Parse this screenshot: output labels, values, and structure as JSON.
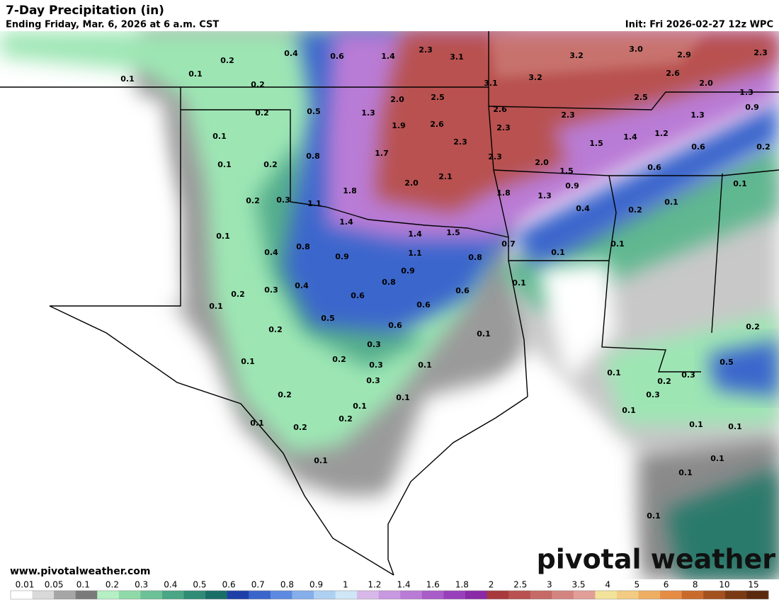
{
  "header": {
    "title": "7-Day Precipitation (in)",
    "subtitle": "Ending Friday, Mar. 6, 2026 at 6 a.m. CST",
    "init": "Init: Fri 2026-02-27 12z WPC"
  },
  "footer": {
    "website": "www.pivotalweather.com",
    "brand": "pivotal weather"
  },
  "map_labels": [
    "0.2",
    "0.4",
    "0.6",
    "1.4",
    "2.3",
    "3.1",
    "3.2",
    "3.0",
    "2.9",
    "2.3",
    "0.1",
    "0.1",
    "0.2",
    "3.1",
    "3.2",
    "2.6",
    "2.0",
    "1.3",
    "0.2",
    "0.5",
    "1.3",
    "2.0",
    "2.5",
    "2.6",
    "2.5",
    "2.3",
    "1.3",
    "0.9",
    "0.1",
    "1.9",
    "2.6",
    "2.3",
    "1.4",
    "1.2",
    "1.5",
    "0.6",
    "0.2",
    "0.1",
    "0.2",
    "0.8",
    "1.7",
    "2.3",
    "2.3",
    "2.0",
    "1.5",
    "0.6",
    "0.2",
    "0.3",
    "1.1",
    "1.8",
    "2.0",
    "2.1",
    "1.8",
    "1.3",
    "0.9",
    "0.4",
    "0.2",
    "0.1",
    "0.1",
    "0.1",
    "1.4",
    "1.4",
    "1.5",
    "0.7",
    "0.8",
    "0.4",
    "0.9",
    "1.1",
    "0.8",
    "0.1",
    "0.1",
    "0.9",
    "0.8",
    "0.2",
    "0.3",
    "0.4",
    "0.6",
    "0.6",
    "0.1",
    "0.1",
    "0.6",
    "0.5",
    "0.2",
    "0.6",
    "0.1",
    "0.2",
    "0.3",
    "0.2",
    "0.1",
    "0.3",
    "0.1",
    "0.1",
    "0.2",
    "0.3",
    "0.5",
    "0.3",
    "0.3",
    "0.2",
    "0.1",
    "0.1",
    "0.1",
    "0.2",
    "0.1",
    "0.2",
    "0.1",
    "0.1",
    "0.1",
    "0.1",
    "0.1",
    "0.1"
  ],
  "legend": {
    "labels": [
      "0.01",
      "0.05",
      "0.1",
      "0.2",
      "0.3",
      "0.4",
      "0.5",
      "0.6",
      "0.7",
      "0.8",
      "0.9",
      "1",
      "1.2",
      "1.4",
      "1.6",
      "1.8",
      "2",
      "2.5",
      "3",
      "3.5",
      "4",
      "5",
      "6",
      "8",
      "10",
      "15"
    ],
    "colors": [
      "#ffffff",
      "#d9d9d9",
      "#a6a6a6",
      "#7a7a7a",
      "#b5f0c4",
      "#8fd9a8",
      "#6cc196",
      "#4aa684",
      "#2f8b75",
      "#1a6e68",
      "#1e3fa8",
      "#3a66cc",
      "#5d8ae0",
      "#85aeea",
      "#aed0f2",
      "#cfe6f7",
      "#d8b8ea",
      "#c898e0",
      "#b97bd6",
      "#a85cc8",
      "#9840bb",
      "#8a2aa6",
      "#a8393c",
      "#b8514f",
      "#c56a66",
      "#d4847f",
      "#e29e98",
      "#f3e39a",
      "#f1cc82",
      "#eeae62",
      "#e58c45",
      "#c96a2c",
      "#a3511f",
      "#7a3a14",
      "#5b2a0e"
    ]
  }
}
